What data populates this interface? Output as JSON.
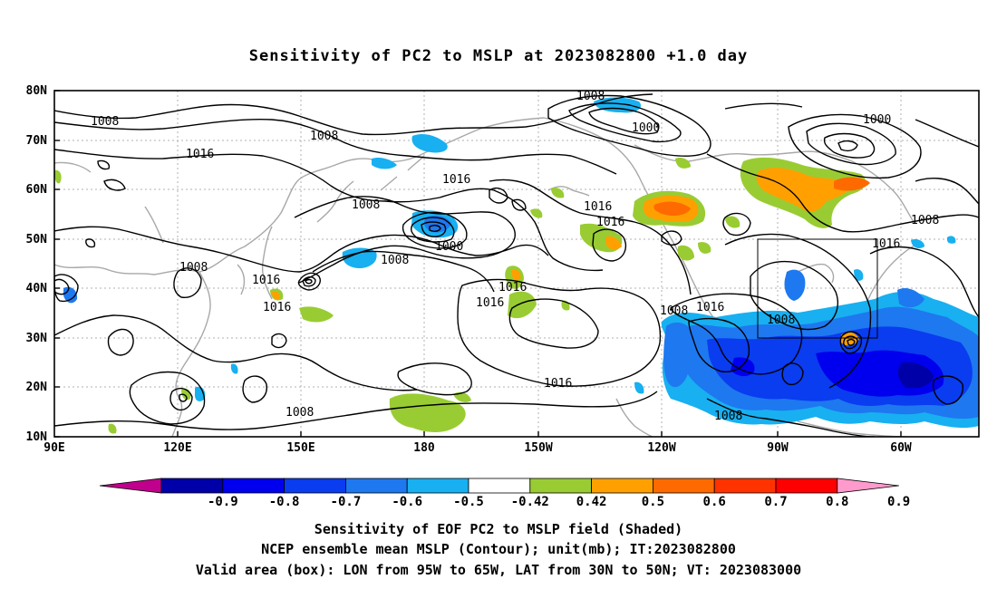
{
  "title": "Sensitivity of PC2 to MSLP at 2023082800 +1.0 day",
  "lat_ticks": [
    "80N",
    "70N",
    "60N",
    "50N",
    "40N",
    "30N",
    "20N",
    "10N"
  ],
  "lon_ticks": [
    "90E",
    "120E",
    "150E",
    "180",
    "150W",
    "120W",
    "90W",
    "60W"
  ],
  "contour_labels": {
    "c1": "1008",
    "c2": "1008",
    "c3": "1008",
    "c4": "1016",
    "c5": "1008",
    "c6": "1000",
    "c7": "1016",
    "c8": "1008",
    "c9": "1000",
    "c10": "1016",
    "c11": "1016",
    "c12": "1000",
    "c13": "1008",
    "c14": "1016",
    "c15": "1008",
    "c16": "1016",
    "c17": "1016",
    "c18": "1016",
    "c19": "1016",
    "c20": "1008",
    "c21": "1016",
    "c22": "1008",
    "c23": "1016",
    "c24": "1008",
    "c25": "1008"
  },
  "colorbar": {
    "labels": [
      "-0.9",
      "-0.8",
      "-0.7",
      "-0.6",
      "-0.5",
      "-0.42",
      "0.42",
      "0.5",
      "0.6",
      "0.7",
      "0.8",
      "0.9"
    ],
    "colors": [
      "#0000a8",
      "#0000ee",
      "#0a3cf0",
      "#1e78f0",
      "#18b0f0",
      "#ffffff",
      "#99cc33",
      "#ffa000",
      "#ff6a00",
      "#ff3200",
      "#ff0000"
    ],
    "min_color": "#c0008c",
    "max_color": "#ff9acc"
  },
  "caption": {
    "line1": "Sensitivity of EOF PC2 to MSLP field (Shaded)",
    "line2": "NCEP ensemble mean MSLP (Contour); unit(mb); IT:2023082800",
    "line3": "Valid area (box): LON from 95W to 65W, LAT from 30N to 50N; VT: 2023083000"
  }
}
